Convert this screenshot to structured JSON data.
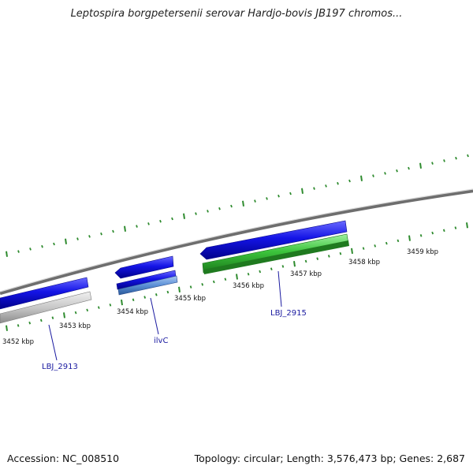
{
  "title": "Leptospira borgpetersenii serovar Hardjo-bovis JB197 chromos...",
  "footer": {
    "accession": "Accession: NC_008510",
    "summary": "Topology: circular; Length: 3,576,473 bp; Genes: 2,687"
  },
  "colors": {
    "backbone": "#8a8a8a",
    "tick": "#2e8b2e",
    "gene_blue": "#1414e6",
    "gene_green": "#3cc43c",
    "gene_grey": "#c8c8c8",
    "gene_lightblue": "#5a8fd6",
    "label_blue": "#1a1aa0"
  },
  "ruler": {
    "unit": "kbp",
    "ticks": [
      "3452 kbp",
      "3453 kbp",
      "3454 kbp",
      "3455 kbp",
      "3456 kbp",
      "3457 kbp",
      "3458 kbp",
      "3459 kbp"
    ]
  },
  "genes": [
    {
      "label": "LBJ_2913"
    },
    {
      "label": "ilvC"
    },
    {
      "label": "LBJ_2915"
    }
  ]
}
